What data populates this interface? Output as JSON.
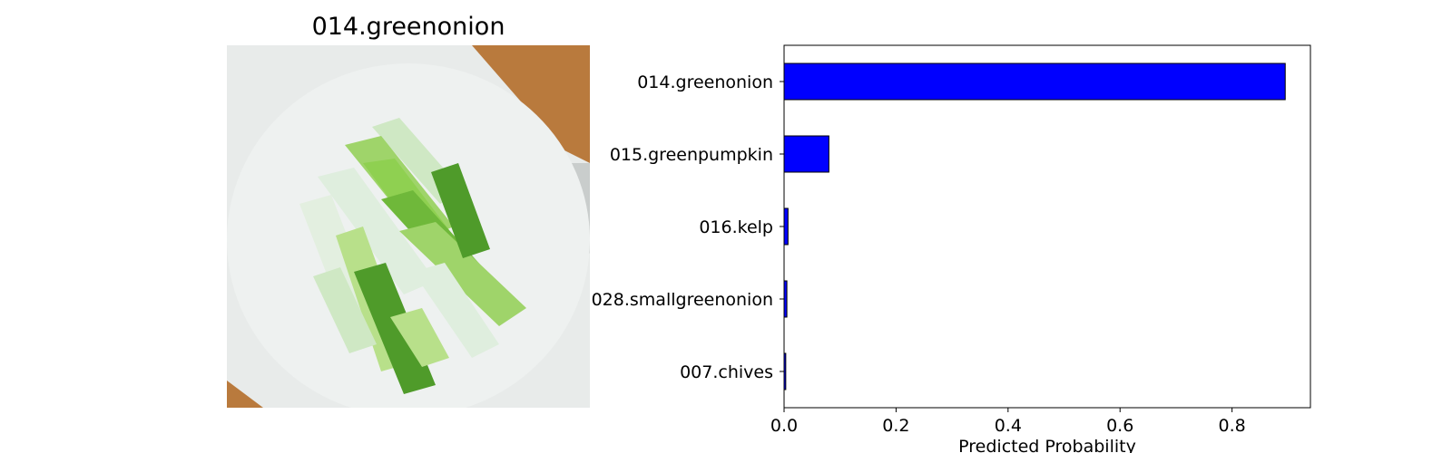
{
  "image_panel": {
    "title": "014.greenonion",
    "colors": {
      "board": "#eef1f0",
      "wood": "#b97a3d",
      "light_stalk": "#dfeede",
      "green_stalk": "#8fd051",
      "dark_green": "#4f9b2a"
    }
  },
  "chart_data": {
    "type": "bar",
    "orientation": "horizontal",
    "categories": [
      "014.greenonion",
      "015.greenpumpkin",
      "016.kelp",
      "028.smallgreenonion",
      "007.chives"
    ],
    "values": [
      0.895,
      0.08,
      0.007,
      0.005,
      0.003
    ],
    "xlabel": "Predicted Probability",
    "ylabel": "",
    "xlim": [
      0,
      0.94
    ],
    "xticks": [
      0.0,
      0.2,
      0.4,
      0.6,
      0.8
    ],
    "xtick_labels": [
      "0.0",
      "0.2",
      "0.4",
      "0.6",
      "0.8"
    ],
    "bar_color": "#0000ff",
    "edge_color": "#000000",
    "grid": false,
    "legend": "none"
  }
}
